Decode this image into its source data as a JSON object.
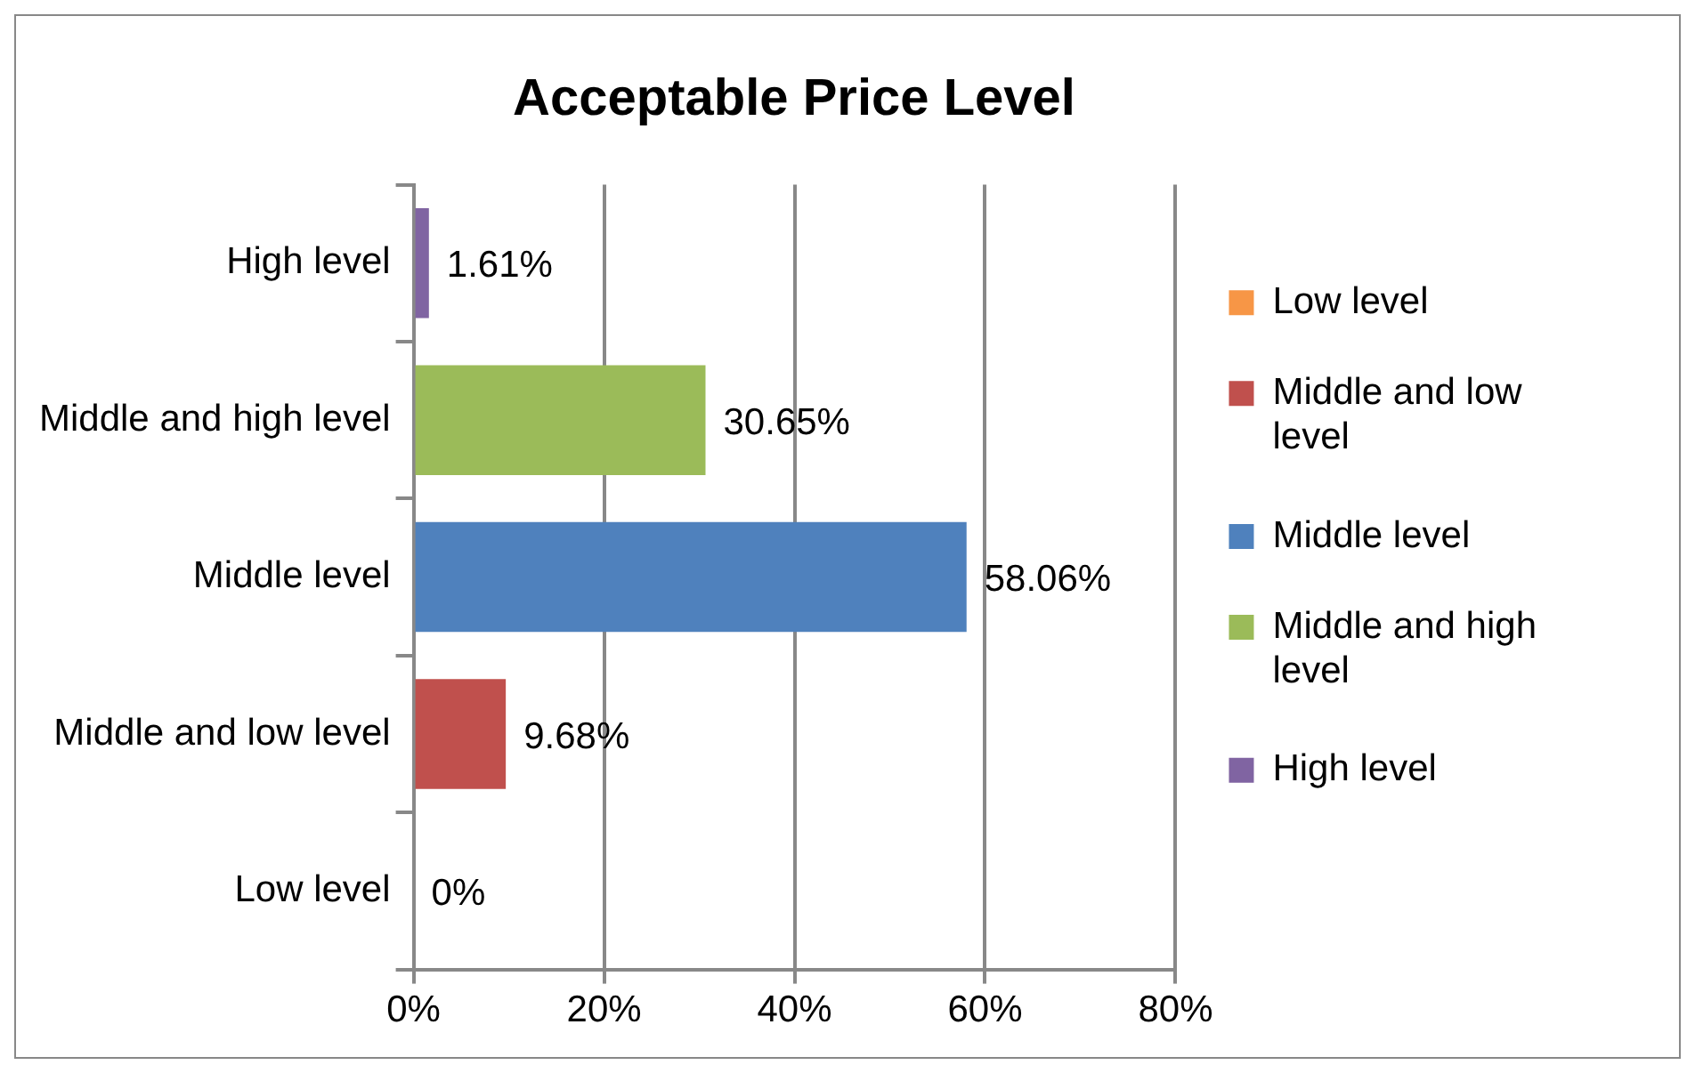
{
  "chart_data": {
    "type": "bar",
    "orientation": "horizontal",
    "stacked": true,
    "title": "Acceptable Price Level",
    "categories": [
      "High level",
      "Middle and high level",
      "Middle level",
      "Middle and low level",
      "Low level"
    ],
    "series": [
      {
        "name": "Low level",
        "color": "#f79646",
        "values": [
          null,
          null,
          null,
          null,
          0
        ],
        "value_labels": [
          null,
          null,
          null,
          null,
          "0%"
        ]
      },
      {
        "name": "Middle and low level",
        "color": "#c0504d",
        "values": [
          null,
          null,
          null,
          9.68,
          null
        ],
        "value_labels": [
          null,
          null,
          null,
          "9.68%",
          null
        ]
      },
      {
        "name": "Middle level",
        "color": "#4f81bd",
        "values": [
          null,
          null,
          58.06,
          null,
          null
        ],
        "value_labels": [
          null,
          null,
          "58.06%",
          null,
          null
        ]
      },
      {
        "name": "Middle and high level",
        "color": "#9bbb59",
        "values": [
          null,
          30.65,
          null,
          null,
          null
        ],
        "value_labels": [
          null,
          "30.65%",
          null,
          null,
          null
        ]
      },
      {
        "name": "High level",
        "color": "#8064a2",
        "values": [
          1.61,
          null,
          null,
          null,
          null
        ],
        "value_labels": [
          "1.61%",
          null,
          null,
          null,
          null
        ]
      }
    ],
    "xlim": [
      0,
      80
    ],
    "xticks": [
      {
        "value": 0,
        "label": "0%"
      },
      {
        "value": 20,
        "label": "20%"
      },
      {
        "value": 40,
        "label": "40%"
      },
      {
        "value": 60,
        "label": "60%"
      },
      {
        "value": 80,
        "label": "80%"
      }
    ],
    "grid": "x",
    "legend": "right"
  }
}
